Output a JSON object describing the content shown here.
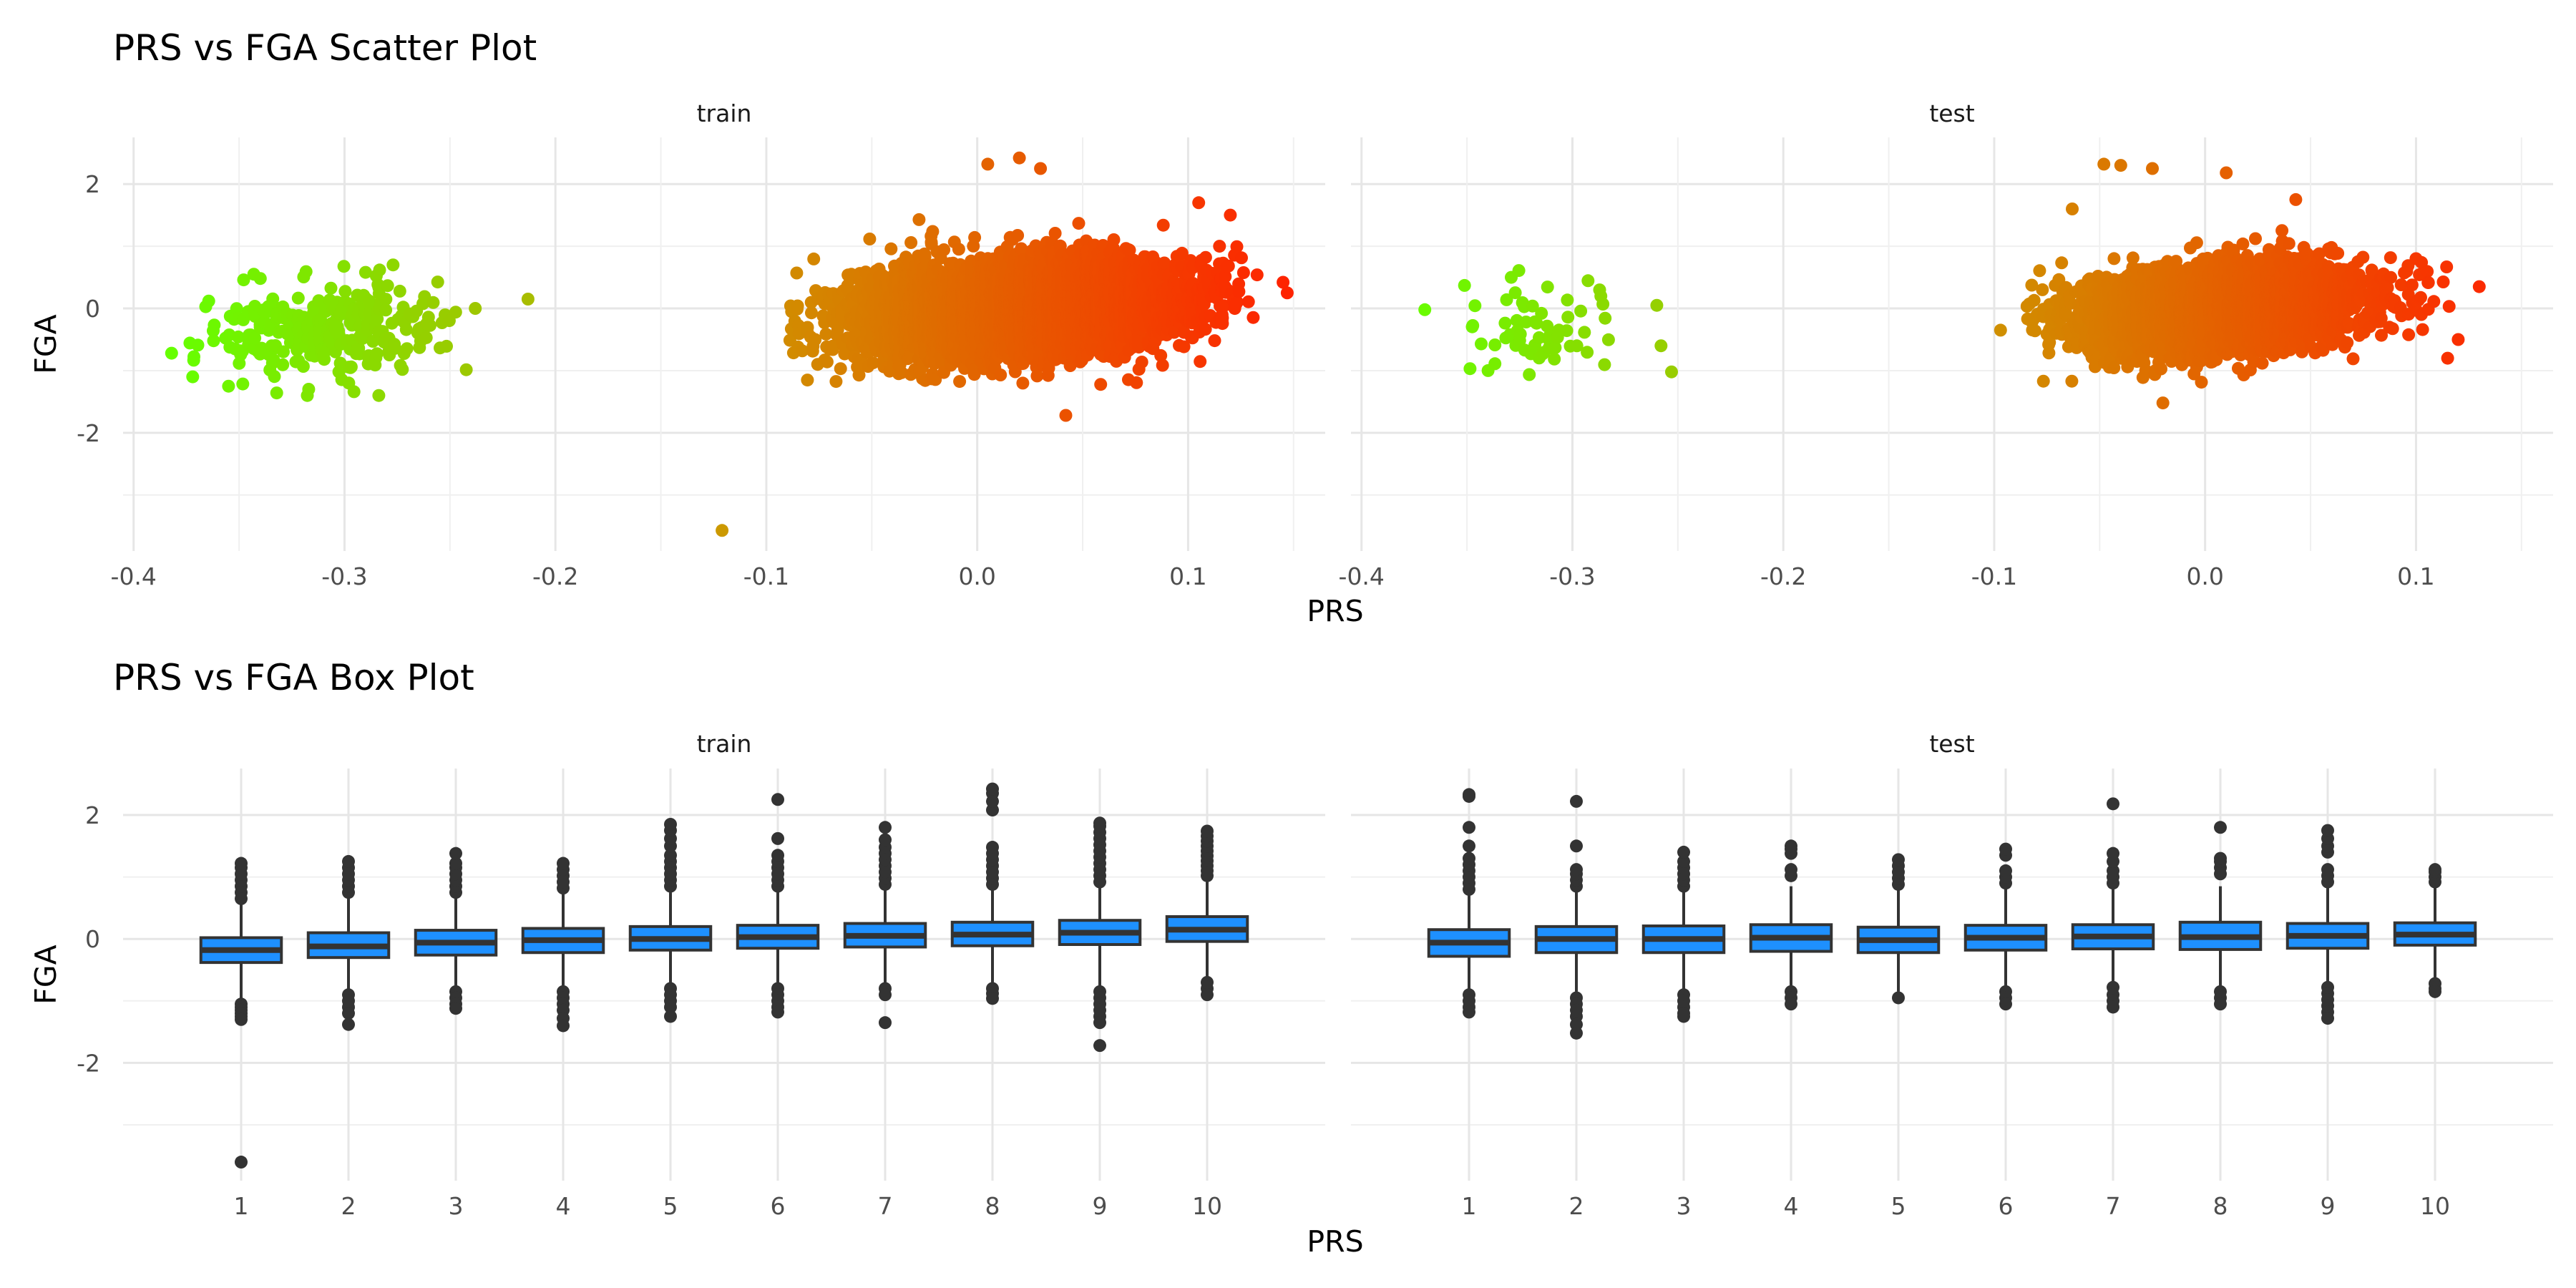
{
  "chart_data": [
    {
      "type": "scatter",
      "title": "PRS vs FGA Scatter Plot",
      "xlabel": "PRS",
      "ylabel": "FGA",
      "xlim": [
        -0.405,
        0.165
      ],
      "ylim": [
        -3.9,
        2.75
      ],
      "grid": true,
      "legend": "none",
      "x_ticks": [
        -0.4,
        -0.3,
        -0.2,
        -0.1,
        0.0,
        0.1
      ],
      "x_tick_labels": [
        "-0.4",
        "-0.3",
        "-0.2",
        "-0.1",
        "0.0",
        "0.1"
      ],
      "y_ticks": [
        -2,
        0,
        2
      ],
      "y_tick_labels": [
        "-2",
        "0",
        "2"
      ],
      "color_scale": {
        "type": "gradient",
        "low": "#66ff00",
        "mid": "#cc9900",
        "high": "#ff2200",
        "low_value": -0.38,
        "mid_value": -0.12,
        "high_value": 0.15
      },
      "panels": [
        {
          "label": "train",
          "clusters": [
            {
              "x_range": [
                -0.38,
                -0.24
              ],
              "x_center": -0.31,
              "y_center": -0.35,
              "x_sd": 0.028,
              "y_sd": 0.35,
              "n": 300
            },
            {
              "x_range": [
                -0.09,
                0.135
              ],
              "x_center": 0.02,
              "y_center": 0.0,
              "x_sd": 0.04,
              "y_sd": 0.38,
              "n": 4800
            }
          ],
          "points": [
            {
              "x": -0.213,
              "y": 0.15
            },
            {
              "x": -0.121,
              "y": -3.57
            },
            {
              "x": 0.145,
              "y": 0.42
            },
            {
              "x": 0.147,
              "y": 0.25
            },
            {
              "x": 0.02,
              "y": 2.42
            },
            {
              "x": 0.005,
              "y": 2.32
            },
            {
              "x": 0.03,
              "y": 2.25
            },
            {
              "x": 0.042,
              "y": -1.72
            },
            {
              "x": -0.343,
              "y": 0.55
            },
            {
              "x": -0.277,
              "y": 0.7
            },
            {
              "x": -0.29,
              "y": 0.58
            },
            {
              "x": -0.238,
              "y": 0.0
            },
            {
              "x": -0.317,
              "y": -1.3
            },
            {
              "x": -0.355,
              "y": -1.25
            },
            {
              "x": -0.298,
              "y": -1.2
            },
            {
              "x": -0.382,
              "y": -0.72
            },
            {
              "x": -0.372,
              "y": -1.1
            },
            {
              "x": 0.12,
              "y": 1.5
            },
            {
              "x": 0.105,
              "y": 1.7
            },
            {
              "x": -0.088,
              "y": -0.05
            },
            {
              "x": -0.085,
              "y": -0.62
            }
          ]
        },
        {
          "label": "test",
          "clusters": [
            {
              "x_range": [
                -0.36,
                -0.26
              ],
              "x_center": -0.315,
              "y_center": -0.35,
              "x_sd": 0.022,
              "y_sd": 0.32,
              "n": 60
            },
            {
              "x_range": [
                -0.085,
                0.12
              ],
              "x_center": 0.01,
              "y_center": 0.0,
              "x_sd": 0.035,
              "y_sd": 0.35,
              "n": 3000
            }
          ],
          "points": [
            {
              "x": -0.37,
              "y": -0.02
            },
            {
              "x": -0.329,
              "y": 0.5
            },
            {
              "x": -0.253,
              "y": -1.02
            },
            {
              "x": -0.258,
              "y": -0.6
            },
            {
              "x": -0.26,
              "y": 0.05
            },
            {
              "x": -0.34,
              "y": -1.0
            },
            {
              "x": -0.097,
              "y": -0.35
            },
            {
              "x": 0.13,
              "y": 0.35
            },
            {
              "x": 0.12,
              "y": -0.5
            },
            {
              "x": 0.115,
              "y": -0.8
            },
            {
              "x": 0.1,
              "y": 0.8
            },
            {
              "x": -0.048,
              "y": 2.32
            },
            {
              "x": -0.04,
              "y": 2.3
            },
            {
              "x": -0.025,
              "y": 2.25
            },
            {
              "x": 0.01,
              "y": 2.18
            },
            {
              "x": 0.043,
              "y": 1.75
            },
            {
              "x": -0.063,
              "y": 1.6
            },
            {
              "x": -0.02,
              "y": -1.52
            }
          ]
        }
      ]
    },
    {
      "type": "box",
      "title": "PRS vs FGA Box Plot",
      "xlabel": "PRS",
      "ylabel": "FGA",
      "ylim": [
        -3.9,
        2.75
      ],
      "grid": true,
      "legend": "none",
      "categories": [
        "1",
        "2",
        "3",
        "4",
        "5",
        "6",
        "7",
        "8",
        "9",
        "10"
      ],
      "y_ticks": [
        -2,
        0,
        2
      ],
      "y_tick_labels": [
        "-2",
        "0",
        "2"
      ],
      "box_color": "#1e90ff",
      "outline_color": "#333333",
      "panels": [
        {
          "label": "train",
          "boxes": [
            {
              "q1": -0.38,
              "median": -0.18,
              "q3": 0.02,
              "whisker_low": -1.0,
              "whisker_high": 0.6,
              "outliers": [
                -1.05,
                -1.1,
                -1.15,
                -1.2,
                -1.25,
                -1.3,
                0.65,
                0.75,
                0.85,
                0.95,
                1.05,
                1.15,
                1.22,
                -3.6
              ]
            },
            {
              "q1": -0.3,
              "median": -0.12,
              "q3": 0.1,
              "whisker_low": -0.85,
              "whisker_high": 0.7,
              "outliers": [
                -0.9,
                -1.0,
                -1.1,
                -1.2,
                -1.38,
                0.75,
                0.85,
                0.95,
                1.05,
                1.15,
                1.25
              ]
            },
            {
              "q1": -0.26,
              "median": -0.06,
              "q3": 0.14,
              "whisker_low": -0.8,
              "whisker_high": 0.7,
              "outliers": [
                -0.85,
                -0.95,
                -1.05,
                -1.12,
                0.75,
                0.85,
                0.95,
                1.05,
                1.15,
                1.22,
                1.38
              ]
            },
            {
              "q1": -0.22,
              "median": -0.02,
              "q3": 0.17,
              "whisker_low": -0.8,
              "whisker_high": 0.75,
              "outliers": [
                -0.85,
                -0.95,
                -1.05,
                -1.15,
                -1.28,
                -1.4,
                0.82,
                0.92,
                1.02,
                1.12,
                1.22
              ]
            },
            {
              "q1": -0.18,
              "median": 0.0,
              "q3": 0.2,
              "whisker_low": -0.75,
              "whisker_high": 0.75,
              "outliers": [
                -0.8,
                -0.9,
                -1.0,
                -1.1,
                -1.25,
                0.85,
                0.95,
                1.05,
                1.15,
                1.25,
                1.35,
                1.5,
                1.62,
                1.75,
                1.85
              ]
            },
            {
              "q1": -0.15,
              "median": 0.03,
              "q3": 0.22,
              "whisker_low": -0.75,
              "whisker_high": 0.78,
              "outliers": [
                -0.8,
                -0.9,
                -1.0,
                -1.1,
                -1.18,
                0.85,
                0.95,
                1.05,
                1.15,
                1.25,
                1.35,
                1.62,
                2.25
              ]
            },
            {
              "q1": -0.13,
              "median": 0.05,
              "q3": 0.25,
              "whisker_low": -0.75,
              "whisker_high": 0.8,
              "outliers": [
                -0.8,
                -0.9,
                -1.35,
                0.88,
                0.98,
                1.08,
                1.18,
                1.28,
                1.38,
                1.48,
                1.6,
                1.8
              ]
            },
            {
              "q1": -0.11,
              "median": 0.07,
              "q3": 0.27,
              "whisker_low": -0.75,
              "whisker_high": 0.8,
              "outliers": [
                -0.8,
                -0.88,
                -0.96,
                0.88,
                0.98,
                1.08,
                1.18,
                1.28,
                1.38,
                1.48,
                2.08,
                2.22,
                2.35,
                2.42
              ]
            },
            {
              "q1": -0.09,
              "median": 0.1,
              "q3": 0.3,
              "whisker_low": -0.8,
              "whisker_high": 0.85,
              "outliers": [
                -0.85,
                -0.95,
                -1.05,
                -1.15,
                -1.25,
                -1.35,
                -1.72,
                0.92,
                1.02,
                1.12,
                1.22,
                1.32,
                1.42,
                1.52,
                1.62,
                1.72,
                1.82,
                1.87
              ]
            },
            {
              "q1": -0.04,
              "median": 0.15,
              "q3": 0.36,
              "whisker_low": -0.65,
              "whisker_high": 0.95,
              "outliers": [
                -0.7,
                -0.8,
                -0.9,
                1.02,
                1.1,
                1.18,
                1.26,
                1.34,
                1.42,
                1.5,
                1.58,
                1.66,
                1.74
              ]
            }
          ]
        },
        {
          "label": "test",
          "boxes": [
            {
              "q1": -0.28,
              "median": -0.06,
              "q3": 0.15,
              "whisker_low": -0.85,
              "whisker_high": 0.75,
              "outliers": [
                -0.9,
                -1.0,
                -1.1,
                -1.18,
                0.8,
                0.9,
                1.0,
                1.1,
                1.2,
                1.3,
                1.5,
                1.8,
                2.3,
                2.33
              ]
            },
            {
              "q1": -0.22,
              "median": 0.0,
              "q3": 0.2,
              "whisker_low": -0.85,
              "whisker_high": 0.8,
              "outliers": [
                -0.95,
                -1.05,
                -1.15,
                -1.25,
                -1.38,
                -1.52,
                0.85,
                0.95,
                1.05,
                1.12,
                1.5,
                2.22
              ]
            },
            {
              "q1": -0.22,
              "median": 0.0,
              "q3": 0.21,
              "whisker_low": -0.85,
              "whisker_high": 0.8,
              "outliers": [
                -0.9,
                -1.0,
                -1.1,
                -1.2,
                -1.25,
                0.85,
                0.95,
                1.05,
                1.15,
                1.25,
                1.4
              ]
            },
            {
              "q1": -0.2,
              "median": 0.02,
              "q3": 0.23,
              "whisker_low": -0.8,
              "whisker_high": 0.85,
              "outliers": [
                -0.85,
                -0.95,
                -1.05,
                1.02,
                1.12,
                1.38,
                1.45,
                1.5
              ]
            },
            {
              "q1": -0.22,
              "median": -0.02,
              "q3": 0.19,
              "whisker_low": -0.85,
              "whisker_high": 0.8,
              "outliers": [
                -0.95,
                0.88,
                0.98,
                1.08,
                1.18,
                1.28
              ]
            },
            {
              "q1": -0.18,
              "median": 0.02,
              "q3": 0.22,
              "whisker_low": -0.78,
              "whisker_high": 0.8,
              "outliers": [
                -0.85,
                -0.95,
                -1.05,
                0.9,
                1.0,
                1.1,
                1.35,
                1.45
              ]
            },
            {
              "q1": -0.16,
              "median": 0.04,
              "q3": 0.23,
              "whisker_low": -0.72,
              "whisker_high": 0.82,
              "outliers": [
                -0.78,
                -0.9,
                -1.0,
                -1.1,
                0.9,
                1.0,
                1.1,
                1.25,
                1.38,
                2.18
              ]
            },
            {
              "q1": -0.17,
              "median": 0.03,
              "q3": 0.27,
              "whisker_low": -0.8,
              "whisker_high": 0.85,
              "outliers": [
                -0.85,
                -0.95,
                -1.05,
                1.05,
                1.15,
                1.25,
                1.3,
                1.8
              ]
            },
            {
              "q1": -0.15,
              "median": 0.05,
              "q3": 0.25,
              "whisker_low": -0.72,
              "whisker_high": 0.85,
              "outliers": [
                -0.78,
                -0.88,
                -0.98,
                -1.08,
                -1.18,
                -1.28,
                0.92,
                1.02,
                1.12,
                1.4,
                1.5,
                1.62,
                1.75
              ]
            },
            {
              "q1": -0.1,
              "median": 0.07,
              "q3": 0.26,
              "whisker_low": -0.68,
              "whisker_high": 0.85,
              "outliers": [
                -0.72,
                -0.8,
                -0.85,
                0.92,
                1.0,
                1.08,
                1.12
              ]
            }
          ]
        }
      ]
    }
  ]
}
